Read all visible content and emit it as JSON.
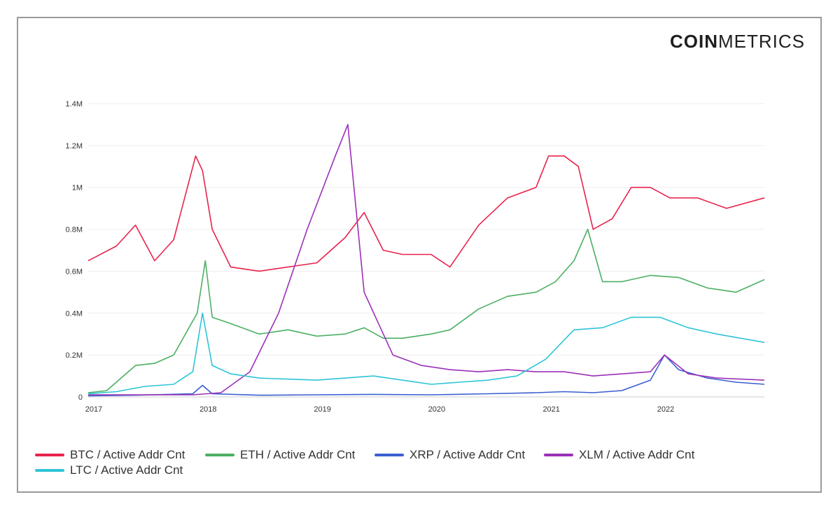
{
  "brand": {
    "part1": "COIN",
    "part2": "METRICS"
  },
  "chart_data": {
    "type": "line",
    "title": "",
    "xlabel": "",
    "ylabel": "",
    "x_ticks": [
      "2017",
      "2018",
      "2019",
      "2020",
      "2021",
      "2022"
    ],
    "y_ticks": [
      "0",
      "0.2M",
      "0.4M",
      "0.6M",
      "0.8M",
      "1M",
      "1.2M",
      "1.4M"
    ],
    "xlim": [
      "2017-01-01",
      "2022-11-30"
    ],
    "ylim": [
      0,
      1400000
    ],
    "grid": true,
    "legend_position": "bottom",
    "series": [
      {
        "name": "BTC / Active Addr Cnt",
        "color": "#e8234d",
        "points": [
          [
            "2017-01-01",
            650000
          ],
          [
            "2017-04-01",
            720000
          ],
          [
            "2017-06-01",
            820000
          ],
          [
            "2017-08-01",
            650000
          ],
          [
            "2017-10-01",
            750000
          ],
          [
            "2017-12-10",
            1150000
          ],
          [
            "2018-01-01",
            1080000
          ],
          [
            "2018-02-01",
            800000
          ],
          [
            "2018-04-01",
            620000
          ],
          [
            "2018-07-01",
            600000
          ],
          [
            "2018-10-01",
            620000
          ],
          [
            "2019-01-01",
            640000
          ],
          [
            "2019-04-01",
            760000
          ],
          [
            "2019-06-01",
            880000
          ],
          [
            "2019-08-01",
            700000
          ],
          [
            "2019-10-01",
            680000
          ],
          [
            "2020-01-01",
            680000
          ],
          [
            "2020-03-01",
            620000
          ],
          [
            "2020-06-01",
            820000
          ],
          [
            "2020-09-01",
            950000
          ],
          [
            "2020-12-01",
            1000000
          ],
          [
            "2021-01-10",
            1150000
          ],
          [
            "2021-03-01",
            1150000
          ],
          [
            "2021-04-15",
            1100000
          ],
          [
            "2021-06-01",
            800000
          ],
          [
            "2021-08-01",
            850000
          ],
          [
            "2021-10-01",
            1000000
          ],
          [
            "2021-12-01",
            1000000
          ],
          [
            "2022-02-01",
            950000
          ],
          [
            "2022-05-01",
            950000
          ],
          [
            "2022-08-01",
            900000
          ],
          [
            "2022-11-30",
            950000
          ]
        ]
      },
      {
        "name": "ETH / Active Addr Cnt",
        "color": "#4caf63",
        "points": [
          [
            "2017-01-01",
            20000
          ],
          [
            "2017-03-01",
            30000
          ],
          [
            "2017-06-01",
            150000
          ],
          [
            "2017-08-01",
            160000
          ],
          [
            "2017-10-01",
            200000
          ],
          [
            "2017-12-15",
            400000
          ],
          [
            "2018-01-10",
            650000
          ],
          [
            "2018-02-01",
            380000
          ],
          [
            "2018-04-01",
            350000
          ],
          [
            "2018-07-01",
            300000
          ],
          [
            "2018-10-01",
            320000
          ],
          [
            "2019-01-01",
            290000
          ],
          [
            "2019-04-01",
            300000
          ],
          [
            "2019-06-01",
            330000
          ],
          [
            "2019-08-01",
            280000
          ],
          [
            "2019-10-01",
            280000
          ],
          [
            "2020-01-01",
            300000
          ],
          [
            "2020-03-01",
            320000
          ],
          [
            "2020-06-01",
            420000
          ],
          [
            "2020-09-01",
            480000
          ],
          [
            "2020-12-01",
            500000
          ],
          [
            "2021-02-01",
            550000
          ],
          [
            "2021-04-01",
            650000
          ],
          [
            "2021-05-15",
            800000
          ],
          [
            "2021-07-01",
            550000
          ],
          [
            "2021-09-01",
            550000
          ],
          [
            "2021-12-01",
            580000
          ],
          [
            "2022-03-01",
            570000
          ],
          [
            "2022-06-01",
            520000
          ],
          [
            "2022-09-01",
            500000
          ],
          [
            "2022-11-30",
            560000
          ]
        ]
      },
      {
        "name": "XRP / Active Addr Cnt",
        "color": "#3a5fd0",
        "points": [
          [
            "2017-01-01",
            5000
          ],
          [
            "2017-06-01",
            8000
          ],
          [
            "2017-12-01",
            15000
          ],
          [
            "2018-01-01",
            55000
          ],
          [
            "2018-02-01",
            15000
          ],
          [
            "2018-07-01",
            8000
          ],
          [
            "2019-01-01",
            10000
          ],
          [
            "2019-07-01",
            12000
          ],
          [
            "2020-01-01",
            10000
          ],
          [
            "2020-07-01",
            15000
          ],
          [
            "2020-12-01",
            20000
          ],
          [
            "2021-03-01",
            25000
          ],
          [
            "2021-06-01",
            20000
          ],
          [
            "2021-09-01",
            30000
          ],
          [
            "2021-12-01",
            80000
          ],
          [
            "2022-01-15",
            200000
          ],
          [
            "2022-03-01",
            130000
          ],
          [
            "2022-06-01",
            90000
          ],
          [
            "2022-09-01",
            70000
          ],
          [
            "2022-11-30",
            60000
          ]
        ]
      },
      {
        "name": "XLM / Active Addr Cnt",
        "color": "#9b30b8",
        "points": [
          [
            "2017-01-01",
            10000
          ],
          [
            "2017-12-01",
            10000
          ],
          [
            "2018-03-01",
            20000
          ],
          [
            "2018-06-01",
            120000
          ],
          [
            "2018-09-01",
            400000
          ],
          [
            "2018-12-01",
            800000
          ],
          [
            "2019-03-01",
            1150000
          ],
          [
            "2019-04-10",
            1300000
          ],
          [
            "2019-06-01",
            500000
          ],
          [
            "2019-09-01",
            200000
          ],
          [
            "2019-12-01",
            150000
          ],
          [
            "2020-03-01",
            130000
          ],
          [
            "2020-06-01",
            120000
          ],
          [
            "2020-09-01",
            130000
          ],
          [
            "2020-12-01",
            120000
          ],
          [
            "2021-03-01",
            120000
          ],
          [
            "2021-06-01",
            100000
          ],
          [
            "2021-09-01",
            110000
          ],
          [
            "2021-12-01",
            120000
          ],
          [
            "2022-01-15",
            200000
          ],
          [
            "2022-04-01",
            110000
          ],
          [
            "2022-07-01",
            90000
          ],
          [
            "2022-11-30",
            80000
          ]
        ]
      },
      {
        "name": "LTC / Active Addr Cnt",
        "color": "#2ec4d6",
        "points": [
          [
            "2017-01-01",
            15000
          ],
          [
            "2017-04-01",
            25000
          ],
          [
            "2017-07-01",
            50000
          ],
          [
            "2017-10-01",
            60000
          ],
          [
            "2017-12-01",
            120000
          ],
          [
            "2018-01-01",
            400000
          ],
          [
            "2018-02-01",
            150000
          ],
          [
            "2018-04-01",
            110000
          ],
          [
            "2018-07-01",
            90000
          ],
          [
            "2018-10-01",
            85000
          ],
          [
            "2019-01-01",
            80000
          ],
          [
            "2019-04-01",
            90000
          ],
          [
            "2019-07-01",
            100000
          ],
          [
            "2019-10-01",
            80000
          ],
          [
            "2020-01-01",
            60000
          ],
          [
            "2020-04-01",
            70000
          ],
          [
            "2020-07-01",
            80000
          ],
          [
            "2020-10-01",
            100000
          ],
          [
            "2021-01-01",
            180000
          ],
          [
            "2021-04-01",
            320000
          ],
          [
            "2021-07-01",
            330000
          ],
          [
            "2021-10-01",
            380000
          ],
          [
            "2022-01-01",
            380000
          ],
          [
            "2022-04-01",
            330000
          ],
          [
            "2022-07-01",
            300000
          ],
          [
            "2022-11-30",
            260000
          ]
        ]
      }
    ]
  }
}
